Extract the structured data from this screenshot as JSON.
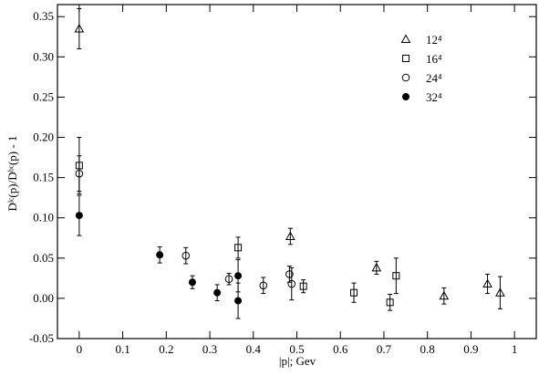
{
  "chart_data": {
    "type": "scatter",
    "xlabel": "|p|;  Gev",
    "ylabel": "Dˡᶜ(p)/Dᵇᶜ(p) - 1",
    "xlim": [
      -0.05,
      1.05
    ],
    "ylim": [
      -0.05,
      0.365
    ],
    "xticks": [
      0,
      0.1,
      0.2,
      0.3,
      0.4,
      0.5,
      0.6,
      0.7,
      0.8,
      0.9,
      1
    ],
    "yticks": [
      -0.05,
      {
        "value": 0,
        "label": "0.00"
      },
      0.05,
      {
        "value": 0.1,
        "label": "0.10"
      },
      0.15,
      {
        "value": 0.2,
        "label": "0.20"
      },
      0.25,
      {
        "value": 0.3,
        "label": "0.30"
      },
      0.35
    ],
    "legend": "upper right",
    "series": [
      {
        "name": "12⁴",
        "color": "#000000",
        "marker": "triangle",
        "x": [
          0,
          0.485,
          0.683,
          0.838,
          0.938,
          0.967
        ],
        "values": [
          0.335,
          0.077,
          0.038,
          0.003,
          0.018,
          0.007
        ],
        "errors": [
          0.025,
          0.01,
          0.008,
          0.01,
          0.012,
          0.02
        ]
      },
      {
        "name": "16⁴",
        "color": "#000000",
        "marker": "square",
        "x": [
          0,
          0.365,
          0.515,
          0.631,
          0.714,
          0.728
        ],
        "values": [
          0.165,
          0.063,
          0.015,
          0.007,
          -0.005,
          0.028
        ],
        "errors": [
          0.035,
          0.013,
          0.008,
          0.012,
          0.01,
          0.022
        ]
      },
      {
        "name": "24⁴",
        "color": "#000000",
        "marker": "circle",
        "x": [
          0,
          0.245,
          0.344,
          0.423,
          0.483,
          0.488
        ],
        "values": [
          0.155,
          0.053,
          0.024,
          0.016,
          0.03,
          0.018
        ],
        "errors": [
          0.022,
          0.01,
          0.007,
          0.01,
          0.01,
          0.02
        ]
      },
      {
        "name": "32⁴",
        "color": "#000000",
        "marker": "filled-circle",
        "x": [
          0,
          0.185,
          0.26,
          0.317,
          0.365,
          0.365
        ],
        "values": [
          0.103,
          0.054,
          0.02,
          0.007,
          0.028,
          -0.003
        ],
        "errors": [
          0.025,
          0.01,
          0.008,
          0.01,
          0.02,
          0.022
        ]
      }
    ]
  }
}
